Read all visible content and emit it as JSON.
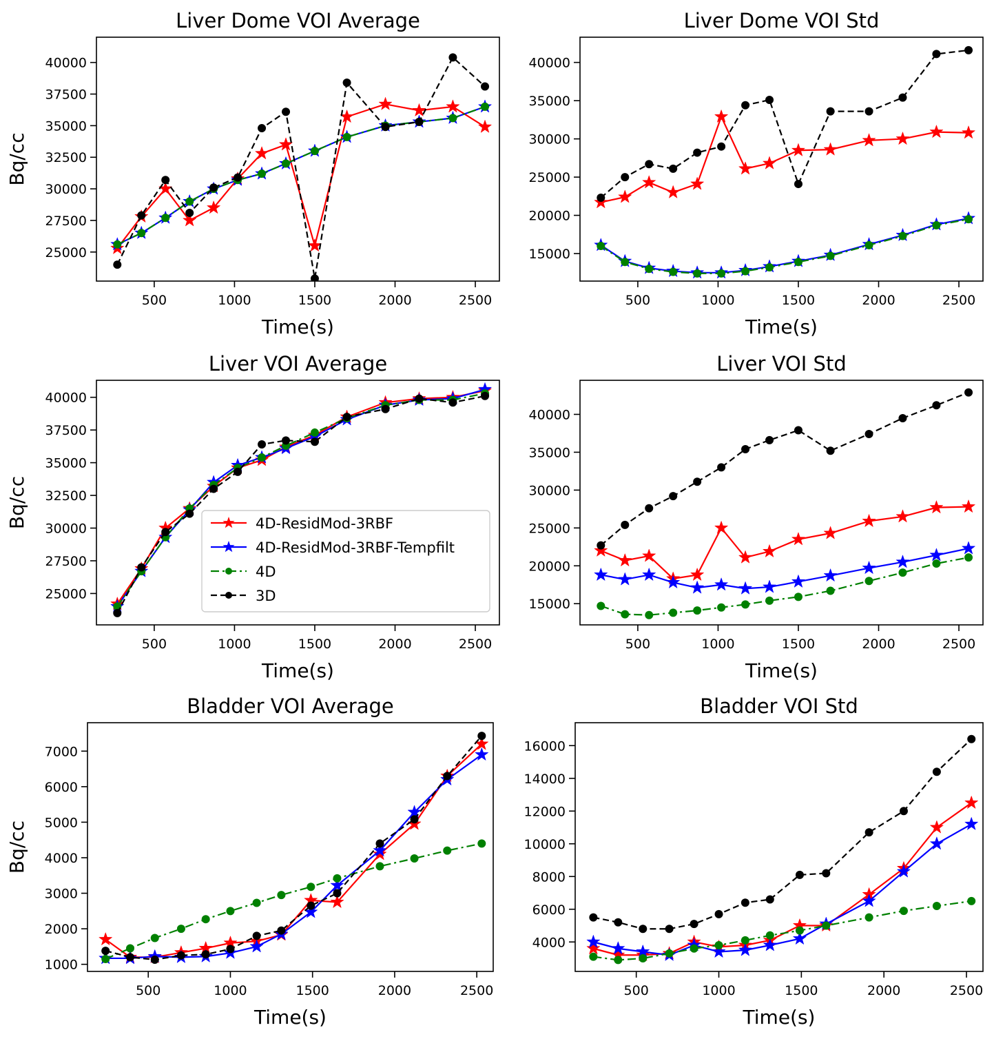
{
  "colors": {
    "4D-ResidMod-3RBF": "#ff0000",
    "4D-ResidMod-3RBF-Tempfilt": "#0000ff",
    "4D": "#008000",
    "3D": "#000000"
  },
  "legend": {
    "entries": [
      "4D-ResidMod-3RBF",
      "4D-ResidMod-3RBF-Tempfilt",
      "4D",
      "3D"
    ],
    "placement": "center-right (Liver VOI Average panel)"
  },
  "chart_data": [
    {
      "type": "line",
      "title": "Liver Dome VOI Average",
      "xlabel": "Time(s)",
      "ylabel": "Bq/cc",
      "xlim": [
        140,
        2650
      ],
      "ylim": [
        22700,
        42000
      ],
      "xticks": [
        500,
        1000,
        1500,
        2000,
        2500
      ],
      "xtick_labels": [
        "500",
        "1000",
        "1500",
        "2000",
        "2500"
      ],
      "yticks": [
        25000,
        27500,
        30000,
        32500,
        35000,
        37500,
        40000
      ],
      "ytick_labels": [
        "25000",
        "27500",
        "30000",
        "32500",
        "35000",
        "37500",
        "40000"
      ],
      "grid": false,
      "x": [
        270,
        420,
        570,
        720,
        870,
        1020,
        1170,
        1320,
        1500,
        1700,
        1940,
        2150,
        2360,
        2560
      ],
      "series": [
        {
          "name": "4D-ResidMod-3RBF",
          "marker": "star",
          "dash": "solid",
          "values": [
            25300,
            27800,
            30000,
            27500,
            28500,
            30800,
            32800,
            33500,
            25500,
            35700,
            36700,
            36200,
            36500,
            34900
          ]
        },
        {
          "name": "4D-ResidMod-3RBF-Tempfilt",
          "marker": "star",
          "dash": "solid",
          "values": [
            25600,
            26500,
            27700,
            29000,
            30000,
            30700,
            31200,
            32000,
            33000,
            34100,
            35000,
            35300,
            35600,
            36500
          ]
        },
        {
          "name": "4D",
          "marker": "circle",
          "dash": "dashdot",
          "values": [
            25600,
            26500,
            27700,
            29000,
            30000,
            30700,
            31200,
            32000,
            33000,
            34100,
            35000,
            35300,
            35600,
            36500
          ]
        },
        {
          "name": "3D",
          "marker": "circle",
          "dash": "dashed",
          "values": [
            24000,
            27900,
            30700,
            28100,
            30100,
            30900,
            34800,
            36100,
            22900,
            38400,
            34900,
            35300,
            40400,
            38100
          ]
        }
      ]
    },
    {
      "type": "line",
      "title": "Liver Dome VOI Std",
      "xlabel": "Time(s)",
      "ylabel": "",
      "xlim": [
        140,
        2650
      ],
      "ylim": [
        11400,
        43300
      ],
      "xticks": [
        500,
        1000,
        1500,
        2000,
        2500
      ],
      "xtick_labels": [
        "500",
        "1000",
        "1500",
        "2000",
        "2500"
      ],
      "yticks": [
        15000,
        20000,
        25000,
        30000,
        35000,
        40000
      ],
      "ytick_labels": [
        "15000",
        "20000",
        "25000",
        "30000",
        "35000",
        "40000"
      ],
      "grid": false,
      "x": [
        270,
        420,
        570,
        720,
        870,
        1020,
        1170,
        1320,
        1500,
        1700,
        1940,
        2150,
        2360,
        2560
      ],
      "series": [
        {
          "name": "4D-ResidMod-3RBF",
          "marker": "star",
          "dash": "solid",
          "values": [
            21700,
            22400,
            24300,
            23000,
            24100,
            32900,
            26100,
            26800,
            28500,
            28600,
            29800,
            30000,
            30900,
            30800
          ]
        },
        {
          "name": "4D-ResidMod-3RBF-Tempfilt",
          "marker": "star",
          "dash": "solid",
          "values": [
            16100,
            14000,
            13100,
            12700,
            12500,
            12500,
            12800,
            13300,
            14000,
            14800,
            16200,
            17400,
            18800,
            19600
          ]
        },
        {
          "name": "4D",
          "marker": "circle",
          "dash": "dashdot",
          "values": [
            16000,
            13900,
            13000,
            12600,
            12400,
            12400,
            12700,
            13200,
            13900,
            14700,
            16100,
            17300,
            18700,
            19500
          ]
        },
        {
          "name": "3D",
          "marker": "circle",
          "dash": "dashed",
          "values": [
            22300,
            25000,
            26700,
            26100,
            28200,
            29000,
            34400,
            35100,
            24100,
            33600,
            33600,
            35400,
            41100,
            41600
          ]
        }
      ]
    },
    {
      "type": "line",
      "title": "Liver VOI Average",
      "xlabel": "Time(s)",
      "ylabel": "Bq/cc",
      "xlim": [
        140,
        2650
      ],
      "ylim": [
        22600,
        41300
      ],
      "xticks": [
        500,
        1000,
        1500,
        2000,
        2500
      ],
      "xtick_labels": [
        "500",
        "1000",
        "1500",
        "2000",
        "2500"
      ],
      "yticks": [
        25000,
        27500,
        30000,
        32500,
        35000,
        37500,
        40000
      ],
      "ytick_labels": [
        "25000",
        "27500",
        "30000",
        "32500",
        "35000",
        "37500",
        "40000"
      ],
      "grid": false,
      "x": [
        270,
        420,
        570,
        720,
        870,
        1020,
        1170,
        1320,
        1500,
        1700,
        1940,
        2150,
        2360,
        2560
      ],
      "series": [
        {
          "name": "4D-ResidMod-3RBF",
          "marker": "star",
          "dash": "solid",
          "values": [
            24200,
            26900,
            30000,
            31500,
            33200,
            34600,
            35200,
            36200,
            37100,
            38500,
            39600,
            39900,
            40000,
            40500
          ]
        },
        {
          "name": "4D-ResidMod-3RBF-Tempfilt",
          "marker": "star",
          "dash": "solid",
          "values": [
            24000,
            26700,
            29300,
            31400,
            33500,
            34800,
            35400,
            36100,
            37000,
            38300,
            39400,
            39800,
            39900,
            40600
          ]
        },
        {
          "name": "4D",
          "marker": "circle",
          "dash": "dashdot",
          "values": [
            24000,
            26700,
            29300,
            31500,
            33300,
            34600,
            35400,
            36300,
            37300,
            38400,
            39400,
            39800,
            39800,
            40300
          ]
        },
        {
          "name": "3D",
          "marker": "circle",
          "dash": "dashed",
          "values": [
            23500,
            27000,
            29700,
            31100,
            33000,
            34300,
            36400,
            36700,
            36600,
            38500,
            39100,
            39900,
            39600,
            40100
          ]
        }
      ]
    },
    {
      "type": "line",
      "title": "Liver VOI Std",
      "xlabel": "Time(s)",
      "ylabel": "",
      "xlim": [
        140,
        2650
      ],
      "ylim": [
        12200,
        44500
      ],
      "xticks": [
        500,
        1000,
        1500,
        2000,
        2500
      ],
      "xtick_labels": [
        "500",
        "1000",
        "1500",
        "2000",
        "2500"
      ],
      "yticks": [
        15000,
        20000,
        25000,
        30000,
        35000,
        40000
      ],
      "ytick_labels": [
        "15000",
        "20000",
        "25000",
        "30000",
        "35000",
        "40000"
      ],
      "grid": false,
      "x": [
        270,
        420,
        570,
        720,
        870,
        1020,
        1170,
        1320,
        1500,
        1700,
        1940,
        2150,
        2360,
        2560
      ],
      "series": [
        {
          "name": "4D-ResidMod-3RBF",
          "marker": "star",
          "dash": "solid",
          "values": [
            22000,
            20700,
            21300,
            18300,
            18800,
            25000,
            21100,
            21900,
            23500,
            24300,
            25900,
            26500,
            27700,
            27800
          ]
        },
        {
          "name": "4D-ResidMod-3RBF-Tempfilt",
          "marker": "star",
          "dash": "solid",
          "values": [
            18800,
            18200,
            18800,
            17800,
            17100,
            17500,
            17000,
            17200,
            17900,
            18700,
            19700,
            20500,
            21400,
            22300
          ]
        },
        {
          "name": "4D",
          "marker": "circle",
          "dash": "dashdot",
          "values": [
            14700,
            13600,
            13500,
            13800,
            14100,
            14500,
            14900,
            15400,
            15900,
            16700,
            18000,
            19100,
            20300,
            21100
          ]
        },
        {
          "name": "3D",
          "marker": "circle",
          "dash": "dashed",
          "values": [
            22700,
            25400,
            27600,
            29200,
            31100,
            33000,
            35400,
            36600,
            37900,
            35200,
            37400,
            39500,
            41200,
            42900
          ]
        }
      ]
    },
    {
      "type": "line",
      "title": "Bladder VOI Average",
      "xlabel": "Time(s)",
      "ylabel": "Bq/cc",
      "xlim": [
        130,
        2600
      ],
      "ylim": [
        800,
        7800
      ],
      "xticks": [
        500,
        1000,
        1500,
        2000,
        2500
      ],
      "xtick_labels": [
        "500",
        "1000",
        "1500",
        "2000",
        "2500"
      ],
      "yticks": [
        1000,
        2000,
        3000,
        4000,
        5000,
        6000,
        7000
      ],
      "ytick_labels": [
        "1000",
        "2000",
        "3000",
        "4000",
        "5000",
        "6000",
        "7000"
      ],
      "grid": false,
      "x": [
        240,
        390,
        540,
        700,
        850,
        1000,
        1160,
        1310,
        1490,
        1650,
        1910,
        2120,
        2320,
        2530
      ],
      "series": [
        {
          "name": "4D-ResidMod-3RBF",
          "marker": "star",
          "dash": "solid",
          "values": [
            1700,
            1200,
            1200,
            1330,
            1450,
            1600,
            1650,
            1830,
            2800,
            2750,
            4100,
            4950,
            6300,
            7200
          ]
        },
        {
          "name": "4D-ResidMod-3RBF-Tempfilt",
          "marker": "star",
          "dash": "solid",
          "values": [
            1170,
            1170,
            1220,
            1200,
            1220,
            1320,
            1500,
            1850,
            2470,
            3220,
            4200,
            5280,
            6200,
            6900
          ]
        },
        {
          "name": "4D",
          "marker": "circle",
          "dash": "dashdot",
          "values": [
            1150,
            1450,
            1740,
            2000,
            2270,
            2500,
            2730,
            2950,
            3180,
            3420,
            3760,
            3980,
            4200,
            4400
          ]
        },
        {
          "name": "3D",
          "marker": "circle",
          "dash": "dashed",
          "values": [
            1380,
            1200,
            1130,
            1250,
            1280,
            1430,
            1800,
            1950,
            2650,
            3000,
            4400,
            5080,
            6300,
            7430
          ]
        }
      ]
    },
    {
      "type": "line",
      "title": "Bladder VOI Std",
      "xlabel": "Time(s)",
      "ylabel": "",
      "xlim": [
        130,
        2600
      ],
      "ylim": [
        2200,
        17400
      ],
      "xticks": [
        500,
        1000,
        1500,
        2000,
        2500
      ],
      "xtick_labels": [
        "500",
        "1000",
        "1500",
        "2000",
        "2500"
      ],
      "yticks": [
        4000,
        6000,
        8000,
        10000,
        12000,
        14000,
        16000
      ],
      "ytick_labels": [
        "4000",
        "6000",
        "8000",
        "10000",
        "12000",
        "14000",
        "16000"
      ],
      "grid": false,
      "x": [
        240,
        390,
        540,
        700,
        850,
        1000,
        1160,
        1310,
        1490,
        1650,
        1910,
        2120,
        2320,
        2530
      ],
      "series": [
        {
          "name": "4D-ResidMod-3RBF",
          "marker": "star",
          "dash": "solid",
          "values": [
            3600,
            3200,
            3200,
            3300,
            4000,
            3700,
            3800,
            4100,
            5000,
            5000,
            6900,
            8500,
            11000,
            12500
          ]
        },
        {
          "name": "4D-ResidMod-3RBF-Tempfilt",
          "marker": "star",
          "dash": "solid",
          "values": [
            4000,
            3600,
            3400,
            3200,
            3800,
            3400,
            3500,
            3800,
            4200,
            5100,
            6500,
            8300,
            10000,
            11200
          ]
        },
        {
          "name": "4D",
          "marker": "circle",
          "dash": "dashdot",
          "values": [
            3100,
            2900,
            3000,
            3300,
            3600,
            3800,
            4100,
            4400,
            4700,
            5000,
            5500,
            5900,
            6200,
            6500
          ]
        },
        {
          "name": "3D",
          "marker": "circle",
          "dash": "dashed",
          "values": [
            5500,
            5200,
            4800,
            4800,
            5100,
            5700,
            6400,
            6600,
            8100,
            8200,
            10700,
            12000,
            14400,
            16400
          ]
        }
      ]
    }
  ]
}
